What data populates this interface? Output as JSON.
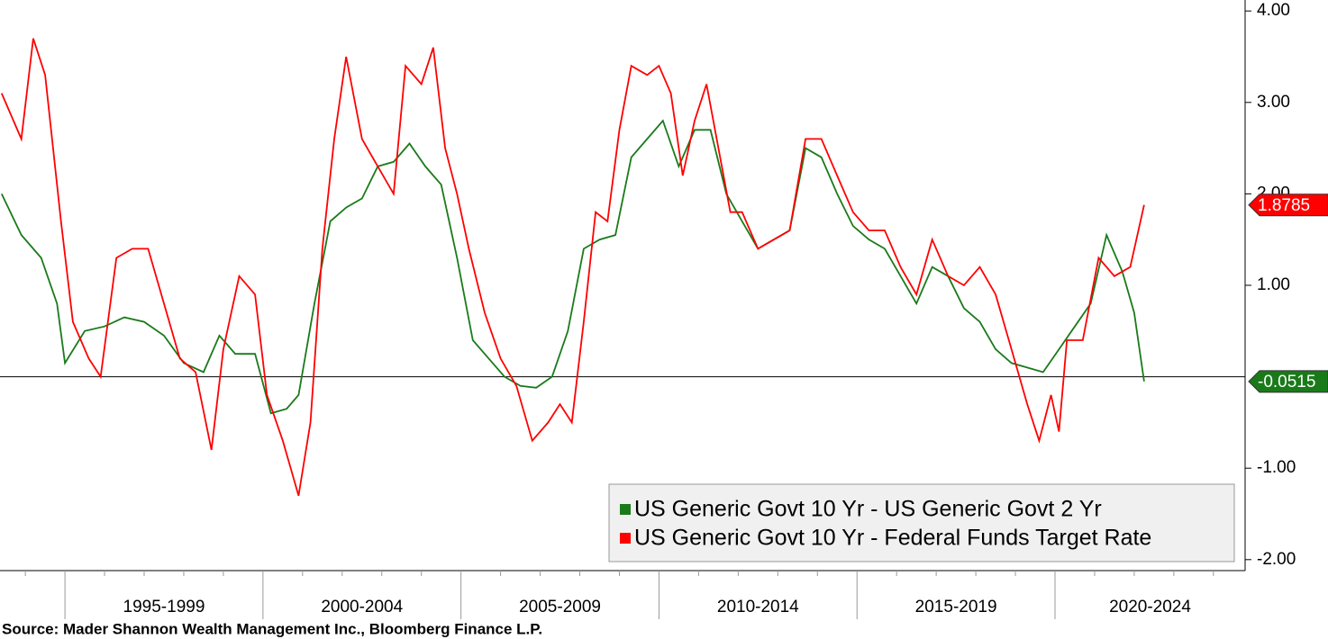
{
  "chart_data": {
    "type": "line",
    "source": "Source: Mader Shannon Wealth Management Inc., Bloomberg Finance L.P.",
    "xlim": [
      1993.36,
      2024.8
    ],
    "ylim": [
      -2.12,
      4.12
    ],
    "xbands": [
      {
        "from": 1995,
        "to": 2000,
        "label": "1995-1999"
      },
      {
        "from": 2000,
        "to": 2005,
        "label": "2000-2004"
      },
      {
        "from": 2005,
        "to": 2010,
        "label": "2005-2009"
      },
      {
        "from": 2010,
        "to": 2015,
        "label": "2010-2014"
      },
      {
        "from": 2015,
        "to": 2020,
        "label": "2015-2019"
      },
      {
        "from": 2020,
        "to": 2025,
        "label": "2020-2024"
      }
    ],
    "yticks": [
      {
        "value": 4,
        "label": "4.00"
      },
      {
        "value": 3,
        "label": "3.00"
      },
      {
        "value": 2,
        "label": "2.00"
      },
      {
        "value": 1,
        "label": "1.00"
      },
      {
        "value": -1,
        "label": "-1.00"
      },
      {
        "value": -2,
        "label": "-2.00"
      }
    ],
    "hline": 0,
    "series": [
      {
        "name": "US Generic Govt 10 Yr - US Generic Govt 2 Yr",
        "color": "#1a7a1a",
        "last_value_label": "-0.0515",
        "x": [
          1993.4,
          1993.9,
          1994.4,
          1994.8,
          1995.0,
          1995.5,
          1996.0,
          1996.5,
          1997.0,
          1997.5,
          1998.0,
          1998.5,
          1998.9,
          1999.3,
          1999.8,
          2000.2,
          2000.6,
          2000.9,
          2001.3,
          2001.7,
          2002.1,
          2002.5,
          2002.9,
          2003.3,
          2003.7,
          2004.1,
          2004.5,
          2004.9,
          2005.3,
          2005.7,
          2006.1,
          2006.5,
          2006.9,
          2007.3,
          2007.7,
          2008.1,
          2008.5,
          2008.9,
          2009.3,
          2009.7,
          2010.1,
          2010.5,
          2010.9,
          2011.3,
          2011.7,
          2012.1,
          2012.5,
          2012.9,
          2013.3,
          2013.7,
          2014.1,
          2014.5,
          2014.9,
          2015.3,
          2015.7,
          2016.1,
          2016.5,
          2016.9,
          2017.3,
          2017.7,
          2018.1,
          2018.5,
          2018.9,
          2019.3,
          2019.7,
          2020.1,
          2020.5,
          2020.9,
          2021.3,
          2021.7,
          2022.0,
          2022.25
        ],
        "values": [
          2.0,
          1.55,
          1.3,
          0.8,
          0.15,
          0.5,
          0.55,
          0.65,
          0.6,
          0.45,
          0.15,
          0.05,
          0.45,
          0.25,
          0.25,
          -0.4,
          -0.35,
          -0.2,
          0.8,
          1.7,
          1.85,
          1.95,
          2.3,
          2.35,
          2.55,
          2.3,
          2.1,
          1.3,
          0.4,
          0.2,
          0.0,
          -0.1,
          -0.12,
          0.0,
          0.5,
          1.4,
          1.5,
          1.55,
          2.4,
          2.6,
          2.8,
          2.3,
          2.7,
          2.7,
          2.0,
          1.7,
          1.4,
          1.5,
          1.6,
          2.5,
          2.4,
          2.0,
          1.65,
          1.5,
          1.4,
          1.1,
          0.8,
          1.2,
          1.1,
          0.75,
          0.6,
          0.3,
          0.15,
          0.1,
          0.05,
          0.3,
          0.55,
          0.8,
          1.55,
          1.15,
          0.7,
          -0.0515
        ]
      },
      {
        "name": "US Generic Govt 10 Yr - Federal Funds Target Rate",
        "color": "#ff0000",
        "last_value_label": "1.8785",
        "x": [
          1993.4,
          1993.9,
          1994.2,
          1994.5,
          1994.9,
          1995.2,
          1995.6,
          1995.9,
          1996.3,
          1996.7,
          1997.1,
          1997.5,
          1997.9,
          1998.3,
          1998.7,
          1999.0,
          1999.4,
          1999.8,
          2000.1,
          2000.5,
          2000.9,
          2001.2,
          2001.5,
          2001.8,
          2002.1,
          2002.5,
          2002.9,
          2003.3,
          2003.6,
          2004.0,
          2004.3,
          2004.6,
          2004.9,
          2005.2,
          2005.6,
          2006.0,
          2006.4,
          2006.8,
          2007.2,
          2007.5,
          2007.8,
          2008.1,
          2008.4,
          2008.7,
          2009.0,
          2009.3,
          2009.7,
          2010.0,
          2010.3,
          2010.6,
          2010.9,
          2011.2,
          2011.5,
          2011.8,
          2012.1,
          2012.5,
          2012.9,
          2013.3,
          2013.7,
          2014.1,
          2014.5,
          2014.9,
          2015.3,
          2015.7,
          2016.1,
          2016.5,
          2016.9,
          2017.3,
          2017.7,
          2018.1,
          2018.5,
          2018.9,
          2019.3,
          2019.6,
          2019.9,
          2020.1,
          2020.3,
          2020.7,
          2021.1,
          2021.5,
          2021.9,
          2022.25
        ],
        "values": [
          3.1,
          2.6,
          3.7,
          3.3,
          1.7,
          0.6,
          0.2,
          0.0,
          1.3,
          1.4,
          1.4,
          0.8,
          0.2,
          0.05,
          -0.8,
          0.3,
          1.1,
          0.9,
          -0.2,
          -0.7,
          -1.3,
          -0.5,
          1.4,
          2.6,
          3.5,
          2.6,
          2.3,
          2.0,
          3.4,
          3.2,
          3.6,
          2.5,
          2.0,
          1.4,
          0.7,
          0.2,
          -0.1,
          -0.7,
          -0.5,
          -0.3,
          -0.5,
          0.6,
          1.8,
          1.7,
          2.7,
          3.4,
          3.3,
          3.4,
          3.1,
          2.2,
          2.8,
          3.2,
          2.5,
          1.8,
          1.8,
          1.4,
          1.5,
          1.6,
          2.6,
          2.6,
          2.2,
          1.8,
          1.6,
          1.6,
          1.2,
          0.9,
          1.5,
          1.1,
          1.0,
          1.2,
          0.9,
          0.3,
          -0.3,
          -0.7,
          -0.2,
          -0.6,
          0.4,
          0.4,
          1.3,
          1.1,
          1.2,
          1.8785
        ]
      }
    ]
  }
}
